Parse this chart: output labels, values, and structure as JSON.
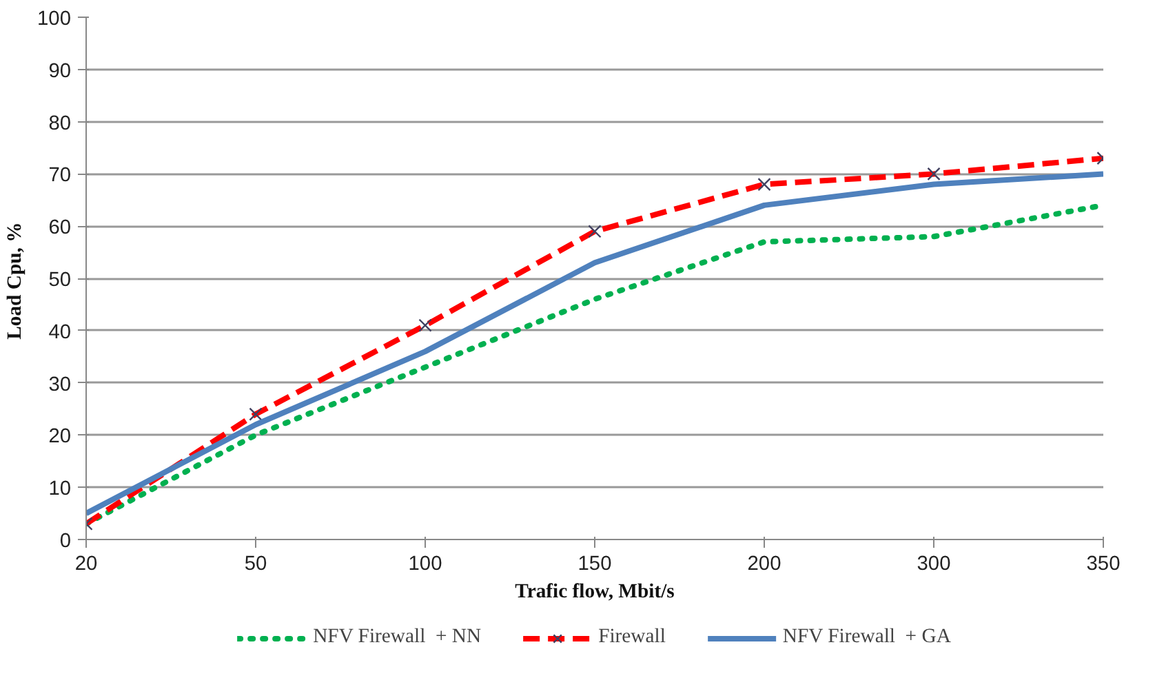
{
  "chart_data": {
    "type": "line",
    "xlabel": "Trafic flow, Mbit/s",
    "ylabel": "Load Cpu,  %",
    "categories": [
      "20",
      "50",
      "100",
      "150",
      "200",
      "300",
      "350"
    ],
    "series": [
      {
        "name": "NFV Firewall  + NN",
        "color": "#00b050",
        "line_style": "dotted",
        "marker": "none",
        "values": [
          3,
          20,
          33,
          46,
          57,
          58,
          64
        ]
      },
      {
        "name": "Firewall",
        "color": "#ff0000",
        "line_style": "dashed",
        "marker": "cross",
        "values": [
          3,
          24,
          41,
          59,
          68,
          70,
          73
        ]
      },
      {
        "name": "NFV Firewall  + GA",
        "color": "#4f81bd",
        "line_style": "solid",
        "marker": "none",
        "values": [
          5,
          22,
          36,
          53,
          64,
          68,
          70
        ]
      }
    ],
    "ylim": [
      0,
      100
    ],
    "yticks": [
      0,
      10,
      20,
      30,
      40,
      50,
      60,
      70,
      80,
      90,
      100
    ],
    "grid": "y",
    "legend": "bottom"
  }
}
